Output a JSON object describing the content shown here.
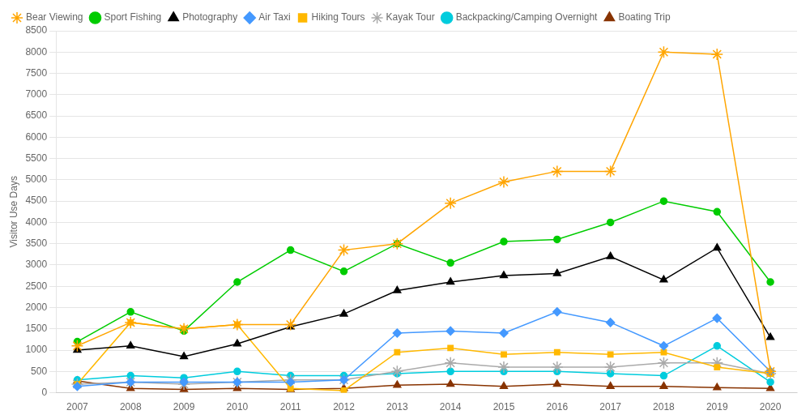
{
  "chart_data": {
    "type": "line",
    "ylabel": "Visitor Use Days",
    "x": [
      2007,
      2008,
      2009,
      2010,
      2011,
      2012,
      2013,
      2014,
      2015,
      2016,
      2017,
      2018,
      2019,
      2020
    ],
    "series": [
      {
        "name": "Bear Viewing",
        "color": "#FFA500",
        "marker": "star",
        "line_style": "solid",
        "values": [
          1100,
          1650,
          1500,
          1600,
          1600,
          3350,
          3500,
          4450,
          4950,
          5200,
          5200,
          8000,
          7950,
          500
        ]
      },
      {
        "name": "Sport Fishing",
        "color": "#00CC00",
        "marker": "circle",
        "line_style": "solid",
        "values": [
          1200,
          1900,
          1450,
          2600,
          3350,
          2850,
          3500,
          3050,
          3550,
          3600,
          4000,
          4500,
          4250,
          2600
        ]
      },
      {
        "name": "Photography",
        "color": "#000000",
        "marker": "triangle",
        "line_style": "solid",
        "values": [
          1000,
          1100,
          850,
          1150,
          1550,
          1850,
          2400,
          2600,
          2750,
          2800,
          3200,
          2650,
          3400,
          1300
        ]
      },
      {
        "name": "Air Taxi",
        "color": "#4499FF",
        "marker": "diamond",
        "line_style": "solid",
        "values": [
          150,
          250,
          250,
          250,
          250,
          300,
          1400,
          1450,
          1400,
          1900,
          1650,
          1100,
          1750,
          500
        ]
      },
      {
        "name": "Hiking Tours",
        "color": "#FFB800",
        "marker": "square",
        "line_style": "solid",
        "values": [
          200,
          1650,
          1500,
          1600,
          100,
          50,
          950,
          1050,
          900,
          950,
          900,
          950,
          600,
          450
        ]
      },
      {
        "name": "Kayak Tour",
        "color": "#AAAAAA",
        "marker": "star",
        "line_style": "solid",
        "values": [
          200,
          250,
          200,
          250,
          300,
          300,
          500,
          700,
          600,
          600,
          600,
          700,
          700,
          450
        ]
      },
      {
        "name": "Backpacking/Camping Overnight",
        "color": "#00CCDD",
        "marker": "circle",
        "line_style": "solid",
        "values": [
          300,
          400,
          350,
          500,
          400,
          400,
          450,
          500,
          500,
          500,
          450,
          400,
          1100,
          250
        ]
      },
      {
        "name": "Boating Trip",
        "color": "#883300",
        "marker": "triangle",
        "line_style": "solid",
        "values": [
          280,
          100,
          80,
          100,
          80,
          100,
          180,
          200,
          150,
          200,
          150,
          150,
          120,
          100
        ]
      }
    ],
    "xlim": [
      2006.6,
      2020.5
    ],
    "xticks": [
      2007,
      2008,
      2009,
      2010,
      2011,
      2012,
      2013,
      2014,
      2015,
      2016,
      2017,
      2018,
      2019,
      2020
    ],
    "ylim": [
      0,
      8500
    ],
    "yticks": [
      0,
      500,
      1000,
      1500,
      2000,
      2500,
      3000,
      3500,
      4000,
      4500,
      5000,
      5500,
      6000,
      6500,
      7000,
      7500,
      8000,
      8500
    ],
    "grid": "y",
    "legend": "upper left"
  }
}
